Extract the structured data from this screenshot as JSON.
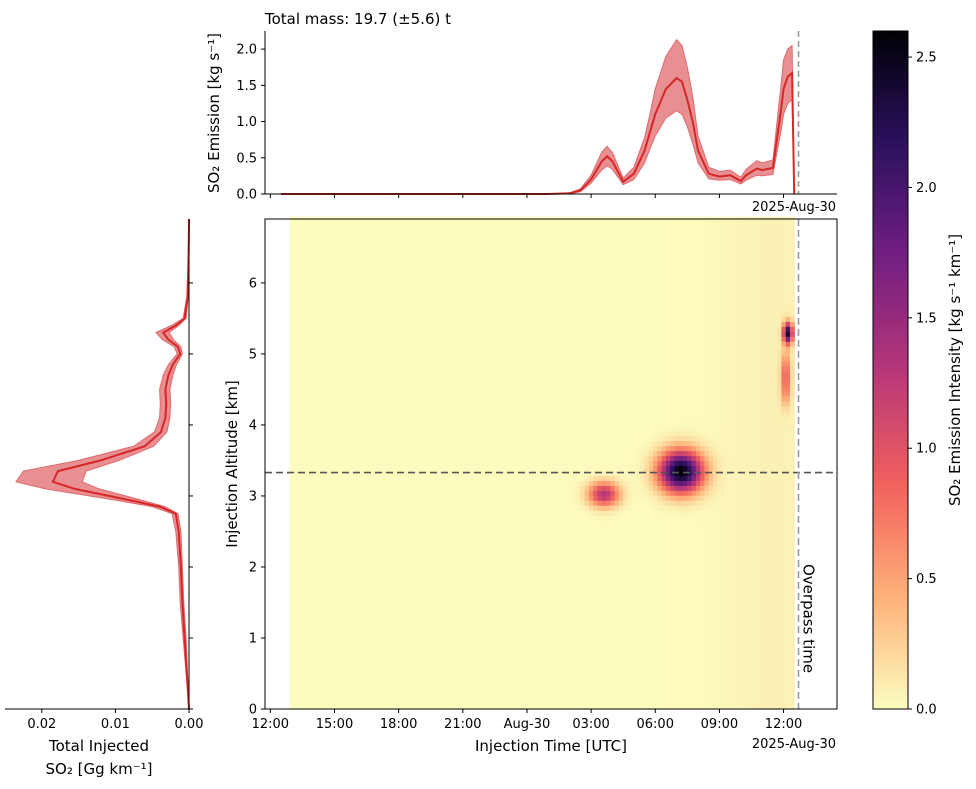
{
  "colors": {
    "line": "#d62728",
    "band": "#e06a6c",
    "marker_line": "#9a9a9a",
    "altitude_line": "#555555"
  },
  "colorbar_stops": [
    "#fcfdbf",
    "#feb078",
    "#f1605d",
    "#b63679",
    "#721f81",
    "#2c115f",
    "#000004"
  ],
  "chart_data": [
    {
      "id": "emission-timeseries",
      "type": "area",
      "title": "Total mass: 19.7 (±5.6) t",
      "ylabel": "SO₂ Emission [kg s⁻¹]",
      "ylim": [
        0,
        2.25
      ],
      "yticks": [
        0,
        0.5,
        1.0,
        1.5,
        2.0
      ],
      "ytick_labels": [
        "0.0",
        "0.5",
        "1.0",
        "1.5",
        "2.0"
      ],
      "date_label": "2025-Aug-30",
      "x_hours": [
        12.5,
        15,
        18,
        21,
        24,
        25,
        26,
        26.5,
        27,
        27.5,
        27.75,
        28,
        28.5,
        29,
        29.5,
        29.75,
        30,
        30.5,
        31,
        31.25,
        31.5,
        31.75,
        32,
        32.5,
        33,
        33.5,
        34,
        34.25,
        34.75,
        35,
        35.5,
        35.9,
        36,
        36.2,
        36.4,
        36.5
      ],
      "mean": [
        0,
        0,
        0,
        0,
        0,
        0,
        0.01,
        0.05,
        0.2,
        0.45,
        0.52,
        0.45,
        0.17,
        0.28,
        0.6,
        0.85,
        1.1,
        1.45,
        1.6,
        1.55,
        1.3,
        1.0,
        0.6,
        0.28,
        0.24,
        0.26,
        0.18,
        0.26,
        0.35,
        0.33,
        0.36,
        1.2,
        1.45,
        1.62,
        1.67,
        0
      ],
      "lower": [
        0,
        0,
        0,
        0,
        0,
        0,
        0.005,
        0.03,
        0.15,
        0.33,
        0.39,
        0.34,
        0.13,
        0.2,
        0.43,
        0.62,
        0.8,
        1.05,
        1.15,
        1.1,
        0.93,
        0.7,
        0.43,
        0.21,
        0.19,
        0.2,
        0.14,
        0.19,
        0.26,
        0.25,
        0.27,
        0.9,
        1.1,
        1.25,
        1.3,
        0
      ],
      "upper": [
        0,
        0,
        0,
        0,
        0,
        0,
        0.015,
        0.07,
        0.26,
        0.58,
        0.66,
        0.57,
        0.22,
        0.37,
        0.78,
        1.1,
        1.45,
        1.9,
        2.13,
        2.05,
        1.75,
        1.35,
        0.8,
        0.37,
        0.31,
        0.33,
        0.23,
        0.34,
        0.46,
        0.43,
        0.47,
        1.55,
        1.85,
        2.0,
        2.05,
        0
      ]
    },
    {
      "id": "emission-heatmap",
      "type": "heatmap",
      "xlabel": "Injection Time [UTC]",
      "ylabel": "Injection Altitude [km]",
      "xlim_hours": [
        11.75,
        38.5
      ],
      "ylim": [
        0,
        6.9
      ],
      "xticks_hours": [
        12,
        15,
        18,
        21,
        24,
        27,
        30,
        33,
        36
      ],
      "xtick_labels": [
        "12:00",
        "15:00",
        "18:00",
        "21:00",
        "Aug-30",
        "03:00",
        "06:00",
        "09:00",
        "12:00"
      ],
      "yticks": [
        0,
        1,
        2,
        3,
        4,
        5,
        6
      ],
      "ytick_labels": [
        "0",
        "1",
        "2",
        "3",
        "4",
        "5",
        "6"
      ],
      "date_label": "2025-Aug-30",
      "data_extent_hours": [
        12.9,
        36.5
      ],
      "overpass_hour": 36.7,
      "overpass_label": "Overpass time",
      "max_altitude_km": 3.33,
      "blobs": [
        {
          "t": 31.2,
          "z": 3.35,
          "peak": 2.6,
          "sigma_t": 0.7,
          "sigma_z": 0.2
        },
        {
          "t": 27.6,
          "z": 3.03,
          "peak": 1.3,
          "sigma_t": 0.5,
          "sigma_z": 0.12
        },
        {
          "t": 36.2,
          "z": 5.3,
          "peak": 2.3,
          "sigma_t": 0.15,
          "sigma_z": 0.1
        },
        {
          "t": 36.1,
          "z": 4.75,
          "peak": 0.8,
          "sigma_t": 0.15,
          "sigma_z": 0.2
        },
        {
          "t": 36.1,
          "z": 4.45,
          "peak": 0.4,
          "sigma_t": 0.15,
          "sigma_z": 0.15
        }
      ]
    },
    {
      "id": "vertical-profile",
      "type": "line",
      "xlabel_line1": "Total Injected",
      "xlabel_line2": "SO₂ [Gg km⁻¹]",
      "xlim": [
        0.025,
        0
      ],
      "xticks": [
        0.02,
        0.01,
        0.0
      ],
      "xtick_labels": [
        "0.02",
        "0.01",
        "0.00"
      ],
      "altitude_km": [
        0,
        0.5,
        1.0,
        1.5,
        2.0,
        2.5,
        2.75,
        2.85,
        2.95,
        3.1,
        3.2,
        3.35,
        3.5,
        3.7,
        3.9,
        4.1,
        4.3,
        4.5,
        4.7,
        4.85,
        5.0,
        5.1,
        5.2,
        5.3,
        5.4,
        5.5,
        5.8,
        6.2,
        6.6,
        6.9
      ],
      "mean": [
        0,
        0.0003,
        0.0006,
        0.0009,
        0.0011,
        0.0014,
        0.0018,
        0.004,
        0.0085,
        0.0155,
        0.0185,
        0.0178,
        0.012,
        0.006,
        0.0038,
        0.0032,
        0.0031,
        0.0032,
        0.0028,
        0.0022,
        0.0012,
        0.0015,
        0.0028,
        0.0035,
        0.0018,
        0.0006,
        0.0002,
        0.0001,
        3e-05,
        0
      ],
      "lower": [
        0,
        0.0002,
        0.0004,
        0.0007,
        0.0009,
        0.0011,
        0.0015,
        0.0033,
        0.0068,
        0.0122,
        0.0145,
        0.014,
        0.0095,
        0.0048,
        0.003,
        0.0026,
        0.0025,
        0.0026,
        0.0022,
        0.0017,
        0.0009,
        0.0011,
        0.0021,
        0.0027,
        0.0014,
        0.0004,
        0.0001,
        5e-05,
        1e-05,
        0
      ],
      "upper": [
        0,
        0.0004,
        0.0008,
        0.0012,
        0.0014,
        0.0018,
        0.0023,
        0.005,
        0.0105,
        0.0195,
        0.0235,
        0.0225,
        0.015,
        0.0075,
        0.0047,
        0.004,
        0.0039,
        0.004,
        0.0035,
        0.0028,
        0.0016,
        0.002,
        0.0036,
        0.0045,
        0.0024,
        0.0008,
        0.0003,
        0.00015,
        5e-05,
        0
      ]
    },
    {
      "id": "colorbar",
      "type": "heatmap",
      "ylabel": "SO₂ Emission Intensity [kg s⁻¹ km⁻¹]",
      "ylim": [
        0,
        2.6
      ],
      "yticks": [
        0,
        0.5,
        1.0,
        1.5,
        2.0,
        2.5
      ],
      "ytick_labels": [
        "0.0",
        "0.5",
        "1.0",
        "1.5",
        "2.0",
        "2.5"
      ]
    }
  ]
}
